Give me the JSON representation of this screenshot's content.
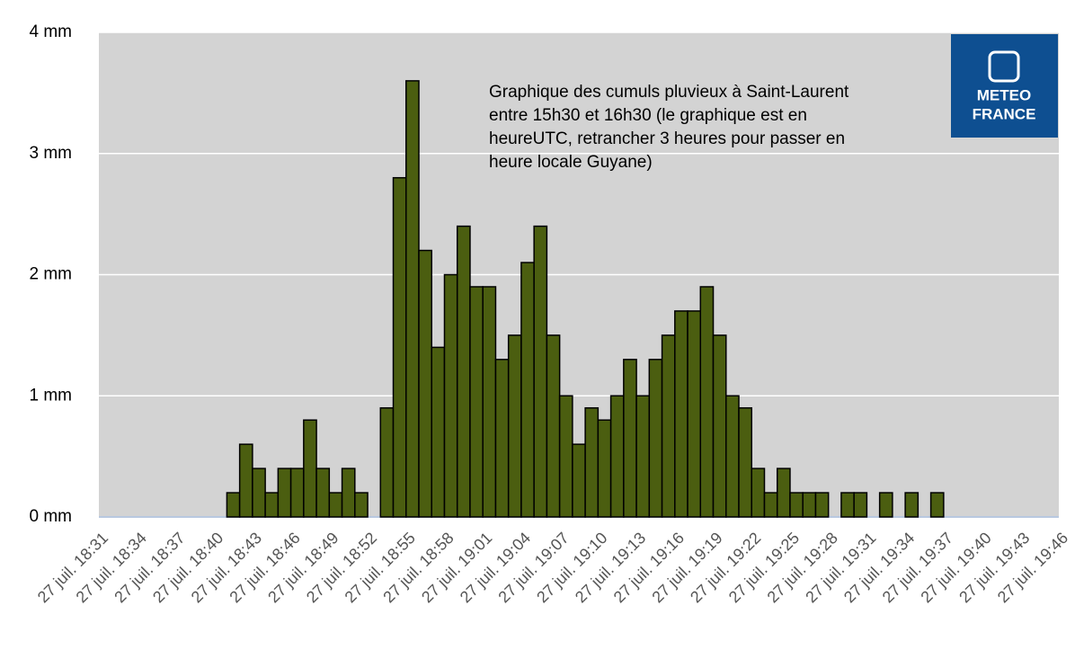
{
  "chart_data": {
    "type": "histogram",
    "annotation": [
      "Graphique des cumuls pluvieux à Saint-Laurent",
      "entre  15h30 et 16h30 (le graphique est en",
      "heureUTC, retrancher  3 heures pour passer en",
      "heure locale Guyane)"
    ],
    "logo": [
      "METEO",
      "FRANCE"
    ],
    "bins": [
      "27 juil. 18:31",
      null,
      null,
      "27 juil. 18:34",
      null,
      null,
      "27 juil. 18:37",
      null,
      null,
      "27 juil. 18:40",
      null,
      null,
      "27 juil. 18:43",
      null,
      null,
      "27 juil. 18:46",
      null,
      null,
      "27 juil. 18:49",
      null,
      null,
      "27 juil. 18:52",
      null,
      null,
      "27 juil. 18:55",
      null,
      null,
      "27 juil. 18:58",
      null,
      null,
      "27 juil. 19:01",
      null,
      null,
      "27 juil. 19:04",
      null,
      null,
      "27 juil. 19:07",
      null,
      null,
      "27 juil. 19:10",
      null,
      null,
      "27 juil. 19:13",
      null,
      null,
      "27 juil. 19:16",
      null,
      null,
      "27 juil. 19:19",
      null,
      null,
      "27 juil. 19:22",
      null,
      null,
      "27 juil. 19:25",
      null,
      null,
      "27 juil. 19:28",
      null,
      null,
      "27 juil. 19:31",
      null,
      null,
      "27 juil. 19:34",
      null,
      null,
      "27 juil. 19:37",
      null,
      null,
      "27 juil. 19:40",
      null,
      null,
      "27 juil. 19:43",
      null,
      null,
      "27 juil. 19:46"
    ],
    "values": [
      0,
      0,
      0,
      0,
      0,
      0,
      0,
      0,
      0,
      0,
      0.2,
      0.6,
      0.4,
      0.2,
      0.4,
      0.4,
      0.8,
      0.4,
      0.2,
      0.4,
      0.2,
      0,
      0.9,
      2.8,
      3.6,
      2.2,
      1.4,
      2.0,
      2.4,
      1.9,
      1.9,
      1.3,
      1.5,
      2.1,
      2.4,
      1.5,
      1.0,
      0.6,
      0.9,
      0.8,
      1.0,
      1.3,
      1.0,
      1.3,
      1.5,
      1.7,
      1.7,
      1.9,
      1.5,
      1.0,
      0.9,
      0.4,
      0.2,
      0.4,
      0.2,
      0.2,
      0.2,
      0,
      0.2,
      0.2,
      0,
      0.2,
      0,
      0.2,
      0,
      0.2,
      0,
      0,
      0,
      0,
      0,
      0,
      0,
      0,
      0
    ],
    "color": "#4b5e10",
    "ylim": [
      0,
      4
    ],
    "yticks": [
      {
        "value": 0,
        "label": "0 mm"
      },
      {
        "value": 1,
        "label": "1 mm"
      },
      {
        "value": 2,
        "label": "2 mm"
      },
      {
        "value": 3,
        "label": "3 mm"
      },
      {
        "value": 4,
        "label": "4 mm"
      }
    ],
    "grid": true
  }
}
